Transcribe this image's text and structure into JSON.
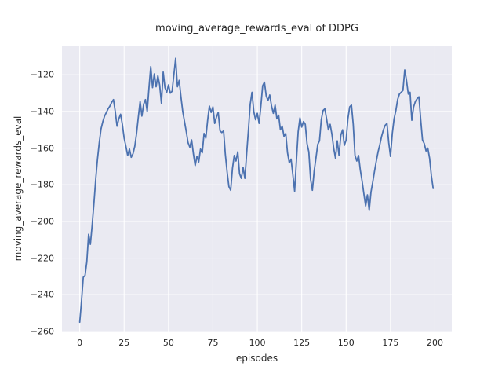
{
  "chart_data": {
    "type": "line",
    "title": "moving_average_rewards_eval of DDPG",
    "xlabel": "episodes",
    "ylabel": "moving_average_rewards_eval",
    "x_start": 0,
    "x_step": 1,
    "values": [
      -255,
      -243.5,
      -230.5,
      -229.5,
      -222,
      -207,
      -212.5,
      -202,
      -190,
      -177,
      -166,
      -157,
      -149.5,
      -145.5,
      -142.5,
      -140.5,
      -138.5,
      -137,
      -135,
      -133.5,
      -140,
      -148,
      -144,
      -141.5,
      -147,
      -154.5,
      -159,
      -164,
      -160.5,
      -165,
      -163,
      -159,
      -152,
      -143,
      -134.5,
      -142.5,
      -136,
      -133.5,
      -140,
      -127,
      -115.5,
      -127,
      -119.5,
      -126.5,
      -120.5,
      -125.5,
      -135.5,
      -118.5,
      -127,
      -129.5,
      -125.5,
      -130,
      -129,
      -120,
      -111,
      -126.5,
      -123,
      -132,
      -140,
      -145.5,
      -151,
      -157,
      -159.5,
      -155.5,
      -163,
      -169.5,
      -164.5,
      -167.5,
      -160.5,
      -162.5,
      -152,
      -154.5,
      -145,
      -137,
      -140.5,
      -137.5,
      -146.5,
      -143,
      -140.5,
      -150.5,
      -151.5,
      -150.5,
      -163.5,
      -173,
      -181,
      -183,
      -171,
      -164,
      -167,
      -162,
      -174,
      -176.5,
      -170.5,
      -176.5,
      -163,
      -150,
      -136,
      -129.5,
      -140,
      -144.5,
      -141,
      -146.5,
      -137,
      -126,
      -124,
      -131.5,
      -134,
      -131,
      -137,
      -141,
      -136.5,
      -144,
      -142,
      -150,
      -148,
      -153.5,
      -152,
      -162.5,
      -168,
      -166,
      -174.5,
      -183.5,
      -167,
      -151,
      -143.5,
      -148.5,
      -145.5,
      -147,
      -157.5,
      -162,
      -177,
      -183,
      -172.5,
      -165.5,
      -158,
      -156,
      -144.5,
      -139.5,
      -138.5,
      -144,
      -150,
      -147,
      -152.5,
      -160,
      -165.5,
      -156,
      -164,
      -153,
      -150,
      -158.5,
      -155.5,
      -144,
      -137.5,
      -136.5,
      -147,
      -164,
      -167,
      -164,
      -172,
      -178,
      -185,
      -191.5,
      -185.5,
      -194,
      -184,
      -178.5,
      -172.5,
      -167,
      -162,
      -158,
      -153.5,
      -150,
      -147.5,
      -146.5,
      -157,
      -164.5,
      -152,
      -144,
      -139.5,
      -133.5,
      -130.5,
      -129.5,
      -128.5,
      -117.3,
      -123,
      -130.5,
      -129.5,
      -144.8,
      -137.5,
      -134.5,
      -133,
      -132,
      -144.5,
      -155.5,
      -157.5,
      -161.5,
      -160,
      -165.5,
      -175,
      -182
    ],
    "xlim": [
      -10,
      209.5
    ],
    "ylim": [
      -260.5,
      -104
    ],
    "x_ticks": [
      0,
      25,
      50,
      75,
      100,
      125,
      150,
      175,
      200
    ],
    "y_ticks": [
      -120,
      -140,
      -160,
      -180,
      -200,
      -220,
      -240,
      -260
    ],
    "x_tick_labels": [
      "0",
      "25",
      "50",
      "75",
      "100",
      "125",
      "150",
      "175",
      "200"
    ],
    "y_tick_labels": [
      "−120",
      "−140",
      "−160",
      "−180",
      "−200",
      "−220",
      "−240",
      "−260"
    ],
    "grid": true,
    "legend": false,
    "colors": {
      "line": "#4C72B0",
      "axes_background": "#EAEAF2",
      "grid": "#FFFFFF",
      "figure_background": "#FFFFFF",
      "text": "#262626"
    }
  }
}
